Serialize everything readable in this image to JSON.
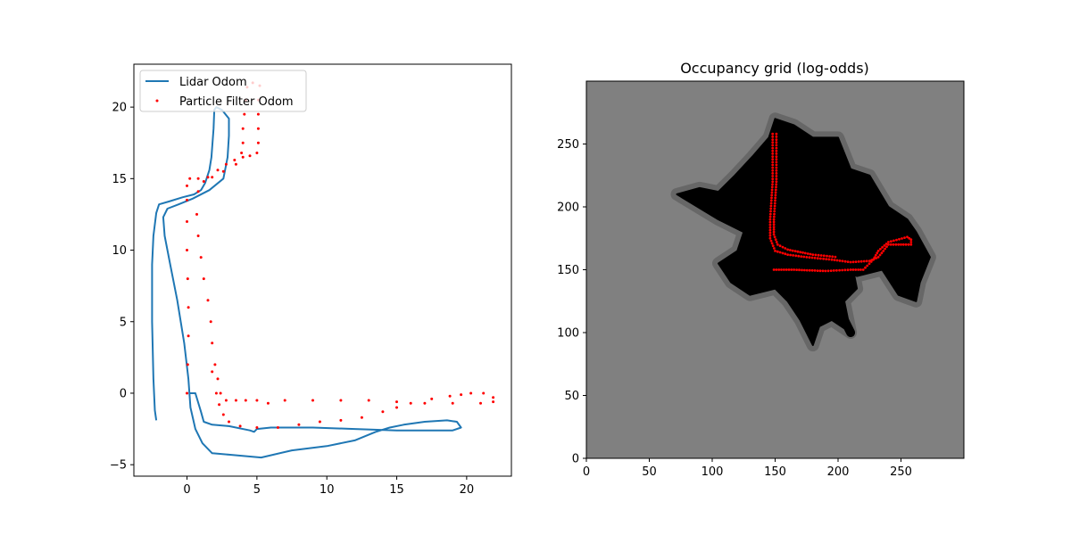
{
  "chart_data": [
    {
      "type": "line",
      "title": "",
      "xlabel": "",
      "ylabel": "",
      "xlim": [
        -3.8,
        23.2
      ],
      "ylim": [
        -5.8,
        23.0
      ],
      "xticks": [
        0,
        5,
        10,
        15,
        20
      ],
      "yticks": [
        -5,
        0,
        5,
        10,
        15,
        20
      ],
      "grid": false,
      "legend_position": "top-left",
      "series": [
        {
          "name": "Lidar Odom",
          "kind": "line",
          "color": "#1f77b4",
          "points": [
            [
              -2.2,
              -1.9
            ],
            [
              -2.3,
              -1.2
            ],
            [
              -2.4,
              1.0
            ],
            [
              -2.5,
              5.0
            ],
            [
              -2.5,
              9.0
            ],
            [
              -2.4,
              11.0
            ],
            [
              -2.2,
              12.6
            ],
            [
              -2.0,
              13.2
            ],
            [
              -1.3,
              13.4
            ],
            [
              -0.3,
              13.7
            ],
            [
              0.5,
              13.9
            ],
            [
              1.0,
              14.2
            ],
            [
              1.3,
              14.7
            ],
            [
              1.6,
              15.6
            ],
            [
              1.75,
              16.5
            ],
            [
              1.9,
              18.5
            ],
            [
              1.95,
              19.8
            ],
            [
              2.1,
              20.0
            ],
            [
              2.5,
              19.8
            ],
            [
              3.0,
              19.2
            ],
            [
              3.0,
              18.0
            ],
            [
              2.9,
              16.5
            ],
            [
              2.6,
              15.0
            ],
            [
              1.6,
              14.2
            ],
            [
              0.4,
              13.6
            ],
            [
              -0.6,
              13.2
            ],
            [
              -1.4,
              12.9
            ],
            [
              -1.7,
              12.3
            ],
            [
              -1.6,
              11.0
            ],
            [
              -1.2,
              9.0
            ],
            [
              -0.7,
              6.5
            ],
            [
              -0.2,
              3.5
            ],
            [
              0.1,
              1.0
            ],
            [
              0.25,
              -1.0
            ],
            [
              0.6,
              -2.5
            ],
            [
              1.1,
              -3.5
            ],
            [
              1.8,
              -4.2
            ],
            [
              3.0,
              -4.3
            ],
            [
              5.3,
              -4.5
            ],
            [
              7.5,
              -4.0
            ],
            [
              10.0,
              -3.7
            ],
            [
              12.0,
              -3.3
            ],
            [
              13.5,
              -2.7
            ],
            [
              14.5,
              -2.4
            ],
            [
              15.5,
              -2.2
            ],
            [
              17.0,
              -2.0
            ],
            [
              18.6,
              -1.9
            ],
            [
              19.3,
              -2.0
            ],
            [
              19.6,
              -2.4
            ],
            [
              19.0,
              -2.6
            ],
            [
              17.0,
              -2.6
            ],
            [
              15.0,
              -2.6
            ],
            [
              12.0,
              -2.5
            ],
            [
              9.0,
              -2.4
            ],
            [
              6.0,
              -2.4
            ],
            [
              5.0,
              -2.5
            ],
            [
              4.8,
              -2.7
            ],
            [
              4.5,
              -2.6
            ],
            [
              3.0,
              -2.3
            ],
            [
              1.8,
              -2.2
            ],
            [
              1.2,
              -2.0
            ],
            [
              1.0,
              -1.3
            ],
            [
              0.6,
              0.0
            ],
            [
              0.2,
              0.0
            ]
          ]
        },
        {
          "name": "Particle Filter Odom",
          "kind": "scatter",
          "color": "#ff0000",
          "points": [
            [
              0.0,
              0.0
            ],
            [
              0.05,
              2.0
            ],
            [
              0.1,
              4.0
            ],
            [
              0.1,
              6.0
            ],
            [
              0.05,
              8.0
            ],
            [
              0.0,
              10.0
            ],
            [
              0.0,
              12.0
            ],
            [
              0.0,
              13.5
            ],
            [
              0.0,
              14.5
            ],
            [
              0.2,
              15.0
            ],
            [
              0.8,
              15.0
            ],
            [
              1.5,
              15.1
            ],
            [
              2.2,
              15.6
            ],
            [
              2.8,
              16.0
            ],
            [
              3.4,
              16.3
            ],
            [
              4.0,
              16.5
            ],
            [
              4.5,
              16.6
            ],
            [
              5.0,
              16.8
            ],
            [
              5.1,
              17.5
            ],
            [
              5.1,
              18.5
            ],
            [
              5.1,
              19.5
            ],
            [
              5.1,
              20.5
            ],
            [
              5.2,
              21.5
            ],
            [
              4.7,
              21.7
            ],
            [
              4.3,
              21.4
            ],
            [
              4.2,
              20.5
            ],
            [
              4.1,
              19.5
            ],
            [
              4.0,
              18.5
            ],
            [
              4.0,
              17.5
            ],
            [
              3.9,
              16.8
            ],
            [
              3.5,
              16.0
            ],
            [
              2.6,
              15.5
            ],
            [
              1.8,
              15.1
            ],
            [
              1.2,
              14.8
            ],
            [
              0.8,
              14.1
            ],
            [
              0.7,
              12.5
            ],
            [
              0.8,
              11.0
            ],
            [
              1.0,
              9.5
            ],
            [
              1.2,
              8.0
            ],
            [
              1.5,
              6.5
            ],
            [
              1.7,
              5.0
            ],
            [
              1.8,
              3.5
            ],
            [
              2.0,
              2.0
            ],
            [
              2.2,
              1.0
            ],
            [
              2.4,
              0.0
            ],
            [
              2.8,
              -0.5
            ],
            [
              3.5,
              -0.5
            ],
            [
              4.2,
              -0.5
            ],
            [
              5.0,
              -0.5
            ],
            [
              5.8,
              -0.7
            ],
            [
              7.0,
              -0.5
            ],
            [
              9.0,
              -0.5
            ],
            [
              11.0,
              -0.5
            ],
            [
              13.0,
              -0.5
            ],
            [
              15.0,
              -0.6
            ],
            [
              17.0,
              -0.7
            ],
            [
              19.0,
              -0.7
            ],
            [
              21.0,
              -0.7
            ],
            [
              21.9,
              -0.6
            ],
            [
              21.9,
              -0.3
            ],
            [
              21.2,
              0.0
            ],
            [
              20.3,
              0.0
            ],
            [
              19.6,
              -0.1
            ],
            [
              18.8,
              -0.2
            ],
            [
              17.5,
              -0.4
            ],
            [
              16.0,
              -0.7
            ],
            [
              15.0,
              -1.0
            ],
            [
              14.0,
              -1.3
            ],
            [
              12.5,
              -1.7
            ],
            [
              11.0,
              -1.9
            ],
            [
              9.5,
              -2.0
            ],
            [
              8.0,
              -2.2
            ],
            [
              6.5,
              -2.4
            ],
            [
              5.0,
              -2.4
            ],
            [
              3.8,
              -2.3
            ],
            [
              3.0,
              -2.0
            ],
            [
              2.6,
              -1.5
            ],
            [
              2.3,
              -0.8
            ],
            [
              2.1,
              0.0
            ],
            [
              1.8,
              1.5
            ]
          ]
        }
      ]
    },
    {
      "type": "heatmap",
      "title": "Occupancy grid (log-odds)",
      "xlabel": "",
      "ylabel": "",
      "xlim": [
        0,
        300
      ],
      "ylim": [
        0,
        300
      ],
      "xticks": [
        0,
        50,
        100,
        150,
        200,
        250
      ],
      "yticks": [
        0,
        50,
        100,
        150,
        200,
        250
      ],
      "colormap": "gray",
      "background_color": "#808080",
      "occupied_color": "#000000",
      "explored_region": [
        [
          150,
          270
        ],
        [
          165,
          265
        ],
        [
          180,
          255
        ],
        [
          200,
          255
        ],
        [
          210,
          230
        ],
        [
          225,
          225
        ],
        [
          240,
          200
        ],
        [
          255,
          190
        ],
        [
          262,
          180
        ],
        [
          273,
          160
        ],
        [
          265,
          140
        ],
        [
          262,
          125
        ],
        [
          248,
          130
        ],
        [
          235,
          150
        ],
        [
          215,
          145
        ],
        [
          205,
          150
        ],
        [
          200,
          160
        ],
        [
          212,
          150
        ],
        [
          215,
          135
        ],
        [
          205,
          125
        ],
        [
          210,
          100
        ],
        [
          195,
          110
        ],
        [
          185,
          105
        ],
        [
          180,
          90
        ],
        [
          170,
          110
        ],
        [
          160,
          125
        ],
        [
          150,
          135
        ],
        [
          130,
          130
        ],
        [
          115,
          140
        ],
        [
          105,
          155
        ],
        [
          120,
          165
        ],
        [
          125,
          180
        ],
        [
          105,
          190
        ],
        [
          72,
          210
        ],
        [
          90,
          215
        ],
        [
          105,
          212
        ],
        [
          118,
          225
        ],
        [
          132,
          240
        ],
        [
          145,
          255
        ]
      ],
      "corridor": [
        [
          195,
          130
        ],
        [
          210,
          100
        ]
      ],
      "path": {
        "name": "",
        "color": "#ff0000",
        "points": [
          [
            149,
            150
          ],
          [
            165,
            150
          ],
          [
            190,
            149
          ],
          [
            210,
            150
          ],
          [
            220,
            150
          ],
          [
            228,
            158
          ],
          [
            232,
            165
          ],
          [
            240,
            172
          ],
          [
            255,
            176
          ],
          [
            258,
            174
          ],
          [
            258,
            170
          ],
          [
            248,
            170
          ],
          [
            240,
            170
          ],
          [
            232,
            160
          ],
          [
            225,
            157
          ],
          [
            210,
            156
          ],
          [
            195,
            158
          ],
          [
            175,
            160
          ],
          [
            160,
            162
          ],
          [
            150,
            165
          ],
          [
            146,
            175
          ],
          [
            146,
            190
          ],
          [
            147,
            205
          ],
          [
            148,
            220
          ],
          [
            148,
            240
          ],
          [
            148,
            258
          ],
          [
            151,
            258
          ],
          [
            151,
            240
          ],
          [
            151,
            220
          ],
          [
            150,
            205
          ],
          [
            149,
            190
          ],
          [
            149,
            178
          ],
          [
            152,
            170
          ],
          [
            160,
            166
          ],
          [
            180,
            162
          ],
          [
            200,
            160
          ]
        ]
      }
    }
  ]
}
